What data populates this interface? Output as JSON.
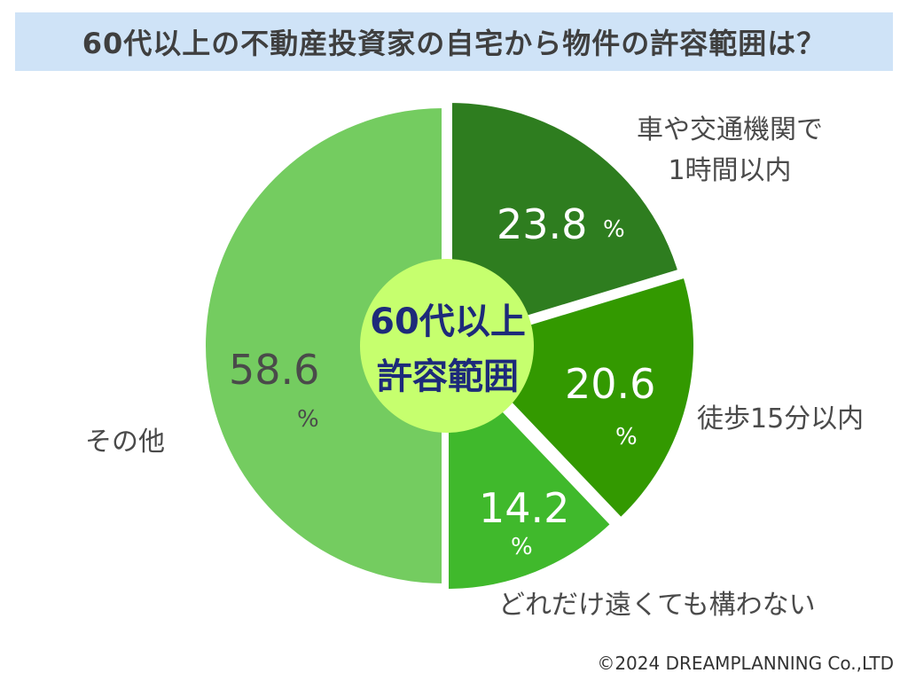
{
  "title": "60代以上の不動産投資家の自宅から物件の許容範囲は？",
  "center_label": [
    "60代以上",
    "許容範囲"
  ],
  "copyright": "©2024 DREAMPLANNING Co.,LTD",
  "chart_data": {
    "type": "pie",
    "title": "60代以上の不動産投資家の自宅から物件の許容範囲は？",
    "unit": "%",
    "slices": [
      {
        "label_lines": [
          "車や交通機関で",
          "1時間以内"
        ],
        "value": 23.8,
        "display": "23.8",
        "color": "#2e7d1f",
        "text_color": "#ffffff"
      },
      {
        "label_lines": [
          "徒歩15分以内"
        ],
        "value": 20.6,
        "display": "20.6",
        "color": "#339900",
        "text_color": "#ffffff"
      },
      {
        "label_lines": [
          "どれだけ遠くても構わない"
        ],
        "value": 14.2,
        "display": "14.2",
        "color": "#40b92c",
        "text_color": "#ffffff"
      },
      {
        "label_lines": [
          "その他"
        ],
        "value": 58.6,
        "display": "58.6",
        "color": "#74cc60",
        "text_color": "#4a4a4a"
      }
    ],
    "center_color": "#c6ff6e"
  }
}
